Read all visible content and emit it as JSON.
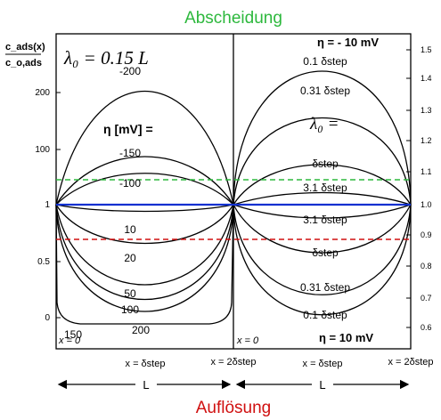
{
  "title_top": "Abscheidung",
  "title_bottom": "Auflösung",
  "y_axis_label_num": "c_ads(x)",
  "y_axis_label_den": "c_o,ads",
  "left_panel_param": "λ₀ = 0.15 L",
  "right_panel_param": "λ₀ =",
  "eta_label": "η [mV] =",
  "eta_right_top": "η = - 10 mV",
  "eta_right_bottom": "η = 10 mV",
  "x_labels": {
    "x0_left": "x = 0",
    "x0_right": "x = 0",
    "mid_left": "x = δstep",
    "end_left": "x = 2δstep",
    "mid_right": "x = δstep",
    "end_right": "x = 2δstep"
  },
  "length_label_left": "L",
  "length_label_right": "L",
  "colors": {
    "green": "#2db83d",
    "red": "#d01010",
    "blue": "#1030d0"
  },
  "chart_data": {
    "type": "line",
    "left_panel": {
      "y_ticks": [
        0,
        0.5,
        1,
        100,
        200
      ],
      "series_labels": [
        "-200",
        "-150",
        "-100",
        "10",
        "20",
        "50",
        "100",
        "150",
        "200"
      ]
    },
    "right_panel": {
      "y_ticks": [
        0.6,
        0.7,
        0.8,
        0.9,
        1.0,
        1.1,
        1.2,
        1.3,
        1.4,
        1.5
      ],
      "series_labels_top": [
        "0.1 δstep",
        "0.31 δstep",
        "δstep",
        "3.1 δstep"
      ],
      "series_labels_bottom": [
        "3.1 δstep",
        "δstep",
        "0.31 δstep",
        "0.1 δstep"
      ]
    },
    "reference_lines": {
      "upper_green": 1.1,
      "lower_red": 0.9
    }
  }
}
